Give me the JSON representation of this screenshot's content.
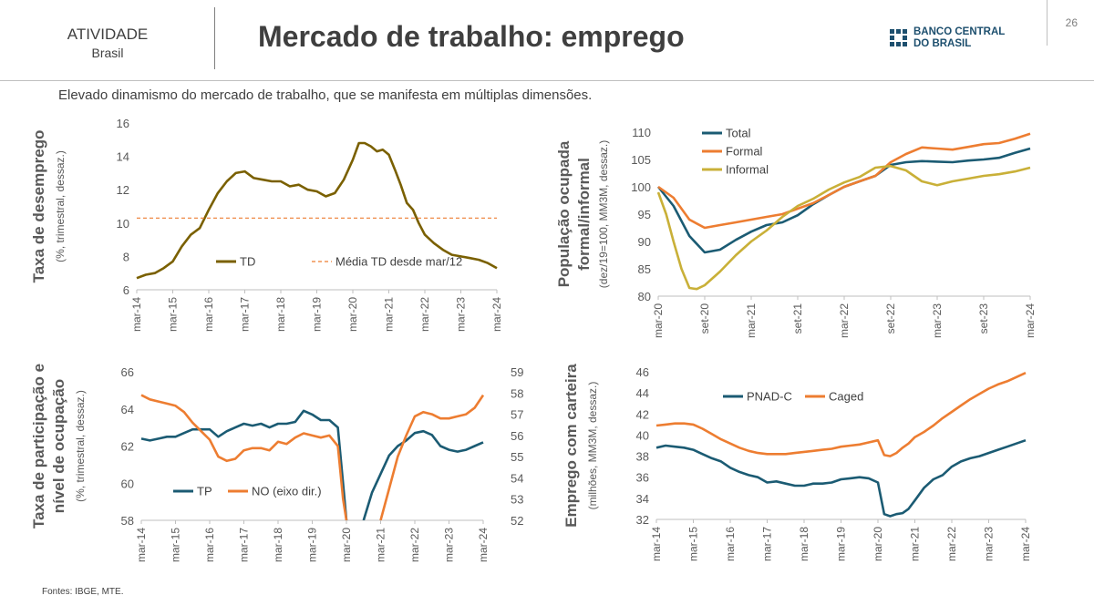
{
  "header": {
    "section": "ATIVIDADE",
    "subsection": "Brasil",
    "title": "Mercado de trabalho: emprego",
    "page_number": "26",
    "logo_line1": "BANCO CENTRAL",
    "logo_line2": "DO BRASIL"
  },
  "subtitle": "Elevado dinamismo do mercado de trabalho, que se manifesta em múltiplas dimensões.",
  "sources": "Fontes: IBGE, MTE.",
  "colors": {
    "dark_olive": "#7a6000",
    "orange": "#ed7d31",
    "teal": "#1b5b73",
    "gold": "#c9b038"
  },
  "chart_data": [
    {
      "type": "line",
      "ylabel": "Taxa de desemprego",
      "ylabel_sub": "(%, trimestral, dessaz.)",
      "x_ticks": [
        "mar-14",
        "mar-15",
        "mar-16",
        "mar-17",
        "mar-18",
        "mar-19",
        "mar-20",
        "mar-21",
        "mar-22",
        "mar-23",
        "mar-24"
      ],
      "ylim": [
        6,
        16
      ],
      "y_ticks": [
        6,
        8,
        10,
        12,
        14,
        16
      ],
      "series": [
        {
          "name": "TD",
          "style": "solid",
          "color": "#7a6000",
          "x": [
            0,
            0.25,
            0.5,
            0.75,
            1,
            1.25,
            1.5,
            1.75,
            2,
            2.25,
            2.5,
            2.75,
            3,
            3.25,
            3.5,
            3.75,
            4,
            4.25,
            4.5,
            4.75,
            5,
            5.25,
            5.5,
            5.75,
            6,
            6.17,
            6.33,
            6.5,
            6.67,
            6.83,
            7,
            7.17,
            7.33,
            7.5,
            7.67,
            7.83,
            8,
            8.25,
            8.5,
            8.75,
            9,
            9.25,
            9.5,
            9.75,
            10
          ],
          "y": [
            6.7,
            6.9,
            7.0,
            7.3,
            7.7,
            8.6,
            9.3,
            9.7,
            10.8,
            11.8,
            12.5,
            13.0,
            13.1,
            12.7,
            12.6,
            12.5,
            12.5,
            12.2,
            12.3,
            12.0,
            11.9,
            11.6,
            11.8,
            12.6,
            13.8,
            14.8,
            14.8,
            14.6,
            14.3,
            14.4,
            14.1,
            13.2,
            12.3,
            11.2,
            10.8,
            10.0,
            9.3,
            8.8,
            8.4,
            8.1,
            8.0,
            7.9,
            7.8,
            7.6,
            7.3
          ]
        },
        {
          "name": "Média TD desde mar/12",
          "style": "dashed",
          "color": "#ed7d31",
          "x": [
            0,
            10
          ],
          "y": [
            10.3,
            10.3
          ]
        }
      ],
      "legend": [
        {
          "label": "TD",
          "color": "#7a6000",
          "style": "solid"
        },
        {
          "label": "Média TD desde mar/12",
          "color": "#ed7d31",
          "style": "dashed"
        }
      ]
    },
    {
      "type": "line",
      "ylabel": "População ocupada",
      "ylabel2": "formal/informal",
      "ylabel_sub": "(dez/19=100, MM3M, dessaz.)",
      "x_ticks": [
        "mar-20",
        "set-20",
        "mar-21",
        "set-21",
        "mar-22",
        "set-22",
        "mar-23",
        "set-23",
        "mar-24"
      ],
      "ylim": [
        80,
        110
      ],
      "y_ticks": [
        80,
        85,
        90,
        95,
        100,
        105,
        110
      ],
      "series": [
        {
          "name": "Total",
          "color": "#1b5b73",
          "x": [
            0,
            0.33,
            0.67,
            1,
            1.33,
            1.67,
            2,
            2.33,
            2.67,
            3,
            3.33,
            3.67,
            4,
            4.33,
            4.67,
            5,
            5.33,
            5.67,
            6,
            6.33,
            6.67,
            7,
            7.33,
            7.67,
            8
          ],
          "y": [
            100.0,
            96.5,
            91.0,
            88.0,
            88.5,
            90.3,
            91.8,
            93.0,
            93.5,
            94.8,
            96.8,
            98.5,
            100.0,
            101.0,
            102.0,
            104.0,
            104.5,
            104.7,
            104.6,
            104.5,
            104.8,
            105.0,
            105.3,
            106.2,
            107.0
          ]
        },
        {
          "name": "Formal",
          "color": "#ed7d31",
          "x": [
            0,
            0.33,
            0.67,
            1,
            1.33,
            1.67,
            2,
            2.33,
            2.67,
            3,
            3.33,
            3.67,
            4,
            4.33,
            4.67,
            5,
            5.33,
            5.67,
            6,
            6.33,
            6.67,
            7,
            7.33,
            7.67,
            8
          ],
          "y": [
            100.0,
            98.0,
            94.0,
            92.5,
            93.0,
            93.5,
            94.0,
            94.5,
            95.0,
            96.0,
            97.0,
            98.5,
            100.0,
            101.0,
            102.0,
            104.5,
            106.0,
            107.2,
            107.0,
            106.8,
            107.3,
            107.8,
            108.0,
            108.8,
            109.7
          ]
        },
        {
          "name": "Informal",
          "color": "#c9b038",
          "x": [
            0,
            0.17,
            0.33,
            0.5,
            0.67,
            0.83,
            1,
            1.33,
            1.67,
            2,
            2.33,
            2.67,
            3,
            3.33,
            3.67,
            4,
            4.33,
            4.67,
            5,
            5.33,
            5.67,
            6,
            6.33,
            6.67,
            7,
            7.33,
            7.67,
            8
          ],
          "y": [
            99.0,
            95.0,
            90.0,
            85.0,
            81.5,
            81.3,
            82.0,
            84.5,
            87.5,
            90.0,
            92.0,
            94.5,
            96.5,
            97.8,
            99.5,
            100.8,
            101.8,
            103.5,
            103.8,
            103.0,
            101.0,
            100.3,
            101.0,
            101.5,
            102.0,
            102.3,
            102.8,
            103.5
          ]
        }
      ],
      "legend": [
        {
          "label": "Total",
          "color": "#1b5b73",
          "style": "solid"
        },
        {
          "label": "Formal",
          "color": "#ed7d31",
          "style": "solid"
        },
        {
          "label": "Informal",
          "color": "#c9b038",
          "style": "solid"
        }
      ]
    },
    {
      "type": "line",
      "ylabel": "Taxa de participação e",
      "ylabel2": "nível de ocupação",
      "ylabel_sub": "(%, trimestral, dessaz.)",
      "x_ticks": [
        "mar-14",
        "mar-15",
        "mar-16",
        "mar-17",
        "mar-18",
        "mar-19",
        "mar-20",
        "mar-21",
        "mar-22",
        "mar-23",
        "mar-24"
      ],
      "ylim": [
        58,
        66
      ],
      "y_ticks": [
        58,
        60,
        62,
        64,
        66
      ],
      "y2lim": [
        52,
        59
      ],
      "y2_ticks": [
        52,
        53,
        54,
        55,
        56,
        57,
        58,
        59
      ],
      "series": [
        {
          "name": "TP",
          "axis": "left",
          "color": "#1b5b73",
          "x": [
            0,
            0.25,
            0.5,
            0.75,
            1,
            1.25,
            1.5,
            1.75,
            2,
            2.25,
            2.5,
            2.75,
            3,
            3.25,
            3.5,
            3.75,
            4,
            4.25,
            4.5,
            4.75,
            5,
            5.25,
            5.5,
            5.75,
            5.9,
            6.0
          ],
          "y": [
            62.4,
            62.3,
            62.4,
            62.5,
            62.5,
            62.7,
            62.9,
            62.9,
            62.9,
            62.5,
            62.8,
            63.0,
            63.2,
            63.1,
            63.2,
            63.0,
            63.2,
            63.2,
            63.3,
            63.9,
            63.7,
            63.4,
            63.4,
            63.0,
            60.0,
            58.0
          ]
        },
        {
          "name": "TP (cont.)",
          "axis": "left",
          "color": "#1b5b73",
          "x": [
            6.5,
            6.75,
            7,
            7.25,
            7.5,
            7.75,
            8,
            8.25,
            8.5,
            8.75,
            9,
            9.25,
            9.5,
            9.75,
            10
          ],
          "y": [
            58.0,
            59.5,
            60.5,
            61.5,
            62.0,
            62.3,
            62.7,
            62.8,
            62.6,
            62.0,
            61.8,
            61.7,
            61.8,
            62.0,
            62.2
          ]
        },
        {
          "name": "NO (eixo dir.)",
          "axis": "right",
          "color": "#ed7d31",
          "x": [
            0,
            0.25,
            0.5,
            0.75,
            1,
            1.25,
            1.5,
            1.75,
            2,
            2.25,
            2.5,
            2.75,
            3,
            3.25,
            3.5,
            3.75,
            4,
            4.25,
            4.5,
            4.75,
            5,
            5.25,
            5.5,
            5.75,
            5.9,
            6.0
          ],
          "y": [
            57.9,
            57.7,
            57.6,
            57.5,
            57.4,
            57.1,
            56.6,
            56.2,
            55.8,
            55.0,
            54.8,
            54.9,
            55.3,
            55.4,
            55.4,
            55.3,
            55.7,
            55.6,
            55.9,
            56.1,
            56.0,
            55.9,
            56.0,
            55.5,
            53.0,
            52.0
          ]
        },
        {
          "name": "NO (cont.)",
          "axis": "right",
          "color": "#ed7d31",
          "x": [
            7,
            7.25,
            7.5,
            7.75,
            8,
            8.25,
            8.5,
            8.75,
            9,
            9.25,
            9.5,
            9.75,
            10
          ],
          "y": [
            52.0,
            53.5,
            55.0,
            56.0,
            56.9,
            57.1,
            57.0,
            56.8,
            56.8,
            56.9,
            57.0,
            57.3,
            57.9
          ]
        }
      ],
      "legend": [
        {
          "label": "TP",
          "color": "#1b5b73",
          "style": "solid"
        },
        {
          "label": "NO (eixo dir.)",
          "color": "#ed7d31",
          "style": "solid"
        }
      ]
    },
    {
      "type": "line",
      "ylabel": "Emprego com carteira",
      "ylabel_sub": "(milhões, MM3M, dessaz.)",
      "x_ticks": [
        "mar-14",
        "mar-15",
        "mar-16",
        "mar-17",
        "mar-18",
        "mar-19",
        "mar-20",
        "mar-21",
        "mar-22",
        "mar-23",
        "mar-24"
      ],
      "ylim": [
        32,
        46
      ],
      "y_ticks": [
        32,
        34,
        36,
        38,
        40,
        42,
        44,
        46
      ],
      "series": [
        {
          "name": "PNAD-C",
          "color": "#1b5b73",
          "x": [
            0,
            0.25,
            0.5,
            0.75,
            1,
            1.25,
            1.5,
            1.75,
            2,
            2.25,
            2.5,
            2.75,
            3,
            3.25,
            3.5,
            3.75,
            4,
            4.25,
            4.5,
            4.75,
            5,
            5.25,
            5.5,
            5.75,
            6,
            6.17,
            6.33,
            6.5,
            6.67,
            6.83,
            7,
            7.25,
            7.5,
            7.75,
            8,
            8.25,
            8.5,
            8.75,
            9,
            9.25,
            9.5,
            9.75,
            10
          ],
          "y": [
            38.8,
            39.0,
            38.9,
            38.8,
            38.6,
            38.2,
            37.8,
            37.5,
            36.9,
            36.5,
            36.2,
            36.0,
            35.5,
            35.6,
            35.4,
            35.2,
            35.2,
            35.4,
            35.4,
            35.5,
            35.8,
            35.9,
            36.0,
            35.9,
            35.5,
            32.5,
            32.3,
            32.5,
            32.6,
            33.0,
            33.8,
            35.0,
            35.8,
            36.2,
            37.0,
            37.5,
            37.8,
            38.0,
            38.3,
            38.6,
            38.9,
            39.2,
            39.5
          ]
        },
        {
          "name": "Caged",
          "color": "#ed7d31",
          "x": [
            0,
            0.25,
            0.5,
            0.75,
            1,
            1.25,
            1.5,
            1.75,
            2,
            2.25,
            2.5,
            2.75,
            3,
            3.25,
            3.5,
            3.75,
            4,
            4.25,
            4.5,
            4.75,
            5,
            5.25,
            5.5,
            5.75,
            6,
            6.17,
            6.33,
            6.5,
            6.67,
            6.83,
            7,
            7.25,
            7.5,
            7.75,
            8,
            8.25,
            8.5,
            8.75,
            9,
            9.25,
            9.5,
            9.75,
            10
          ],
          "y": [
            40.9,
            41.0,
            41.1,
            41.1,
            41.0,
            40.6,
            40.1,
            39.6,
            39.2,
            38.8,
            38.5,
            38.3,
            38.2,
            38.2,
            38.2,
            38.3,
            38.4,
            38.5,
            38.6,
            38.7,
            38.9,
            39.0,
            39.1,
            39.3,
            39.5,
            38.1,
            38.0,
            38.3,
            38.8,
            39.2,
            39.8,
            40.3,
            40.9,
            41.6,
            42.2,
            42.8,
            43.4,
            43.9,
            44.4,
            44.8,
            45.1,
            45.5,
            45.9
          ]
        }
      ],
      "legend": [
        {
          "label": "PNAD-C",
          "color": "#1b5b73",
          "style": "solid"
        },
        {
          "label": "Caged",
          "color": "#ed7d31",
          "style": "solid"
        }
      ]
    }
  ]
}
